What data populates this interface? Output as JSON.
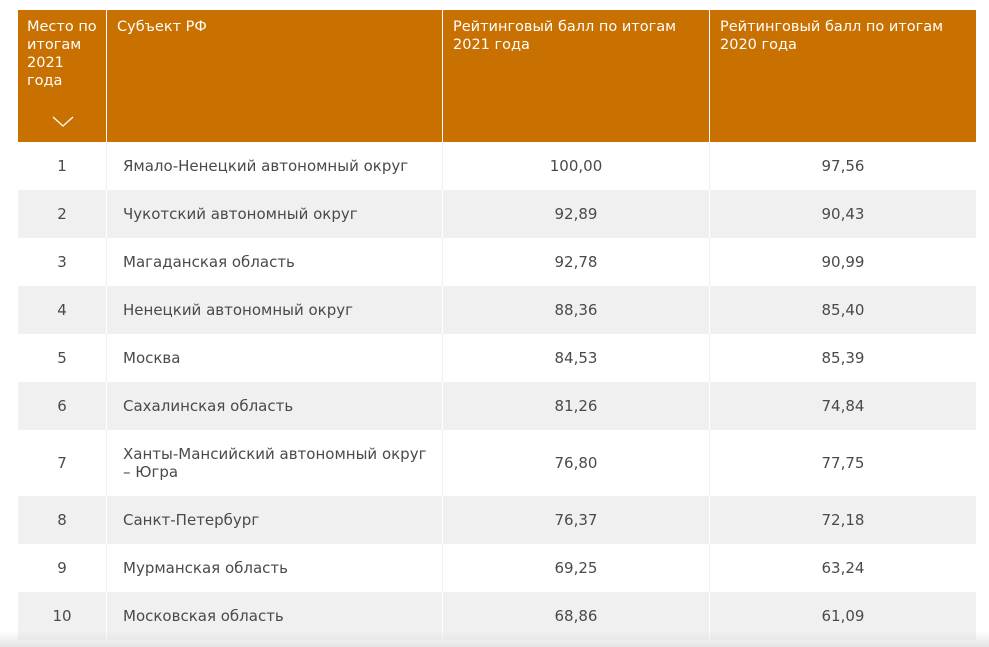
{
  "table": {
    "headers": {
      "rank": "Место по итогам 2021 года",
      "region": "Субъект РФ",
      "score_2021": "Рейтинговый балл по итогам 2021 года",
      "score_2020": "Рейтинговый балл по итогам 2020 года"
    },
    "sort_icon": "chevron-down-icon",
    "header_color": "#c87000",
    "rows": [
      {
        "rank": "1",
        "region": "Ямало-Ненецкий автономный округ",
        "score_2021": "100,00",
        "score_2020": "97,56"
      },
      {
        "rank": "2",
        "region": "Чукотский автономный округ",
        "score_2021": "92,89",
        "score_2020": "90,43"
      },
      {
        "rank": "3",
        "region": "Магаданская область",
        "score_2021": "92,78",
        "score_2020": "90,99"
      },
      {
        "rank": "4",
        "region": "Ненецкий автономный округ",
        "score_2021": "88,36",
        "score_2020": "85,40"
      },
      {
        "rank": "5",
        "region": "Москва",
        "score_2021": "84,53",
        "score_2020": "85,39"
      },
      {
        "rank": "6",
        "region": "Сахалинская область",
        "score_2021": "81,26",
        "score_2020": "74,84"
      },
      {
        "rank": "7",
        "region": "Ханты-Мансийский автономный округ – Югра",
        "score_2021": "76,80",
        "score_2020": "77,75"
      },
      {
        "rank": "8",
        "region": "Санкт-Петербург",
        "score_2021": "76,37",
        "score_2020": "72,18"
      },
      {
        "rank": "9",
        "region": "Мурманская область",
        "score_2021": "69,25",
        "score_2020": "63,24"
      },
      {
        "rank": "10",
        "region": "Московская область",
        "score_2021": "68,86",
        "score_2020": "61,09"
      }
    ]
  }
}
